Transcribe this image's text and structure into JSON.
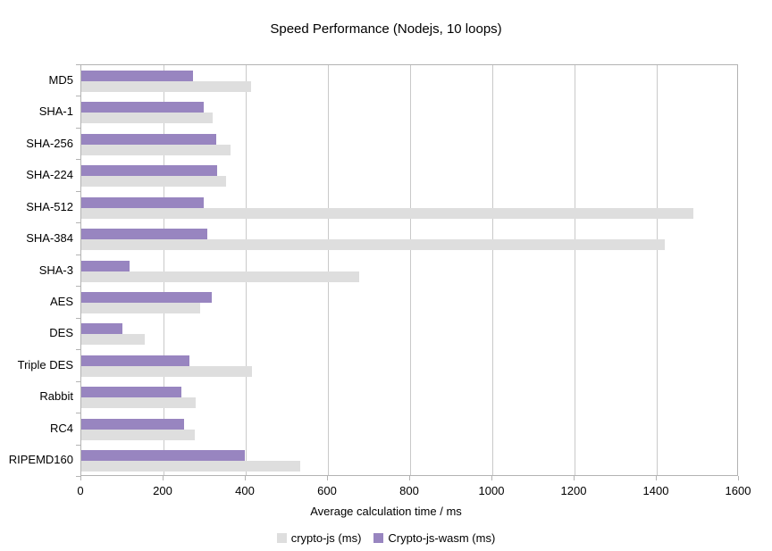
{
  "chart_data": {
    "type": "bar",
    "orientation": "horizontal",
    "title": "Speed Performance (Nodejs, 10 loops)",
    "xlabel": "Average calculation time / ms",
    "xlim": [
      0,
      1600
    ],
    "xticks": [
      0,
      200,
      400,
      600,
      800,
      1000,
      1200,
      1400,
      1600
    ],
    "grid": true,
    "legend_position": "bottom",
    "categories": [
      "MD5",
      "SHA-1",
      "SHA-256",
      "SHA-224",
      "SHA-512",
      "SHA-384",
      "SHA-3",
      "AES",
      "DES",
      "Triple DES",
      "Rabbit",
      "RC4",
      "RIPEMD160"
    ],
    "series": [
      {
        "name": "crypto-js (ms)",
        "color": "#dedede",
        "values": [
          413,
          320,
          362,
          353,
          1490,
          1420,
          676,
          290,
          155,
          415,
          278,
          275,
          533
        ]
      },
      {
        "name": "Crypto-js-wasm (ms)",
        "color": "#9885c0",
        "values": [
          272,
          297,
          328,
          330,
          298,
          307,
          118,
          318,
          100,
          264,
          243,
          251,
          398
        ]
      }
    ]
  },
  "colors": {
    "background": "#ffffff",
    "plot_border": "#b3b3b3",
    "gridline": "#c9c9c9",
    "text": "#000000"
  }
}
